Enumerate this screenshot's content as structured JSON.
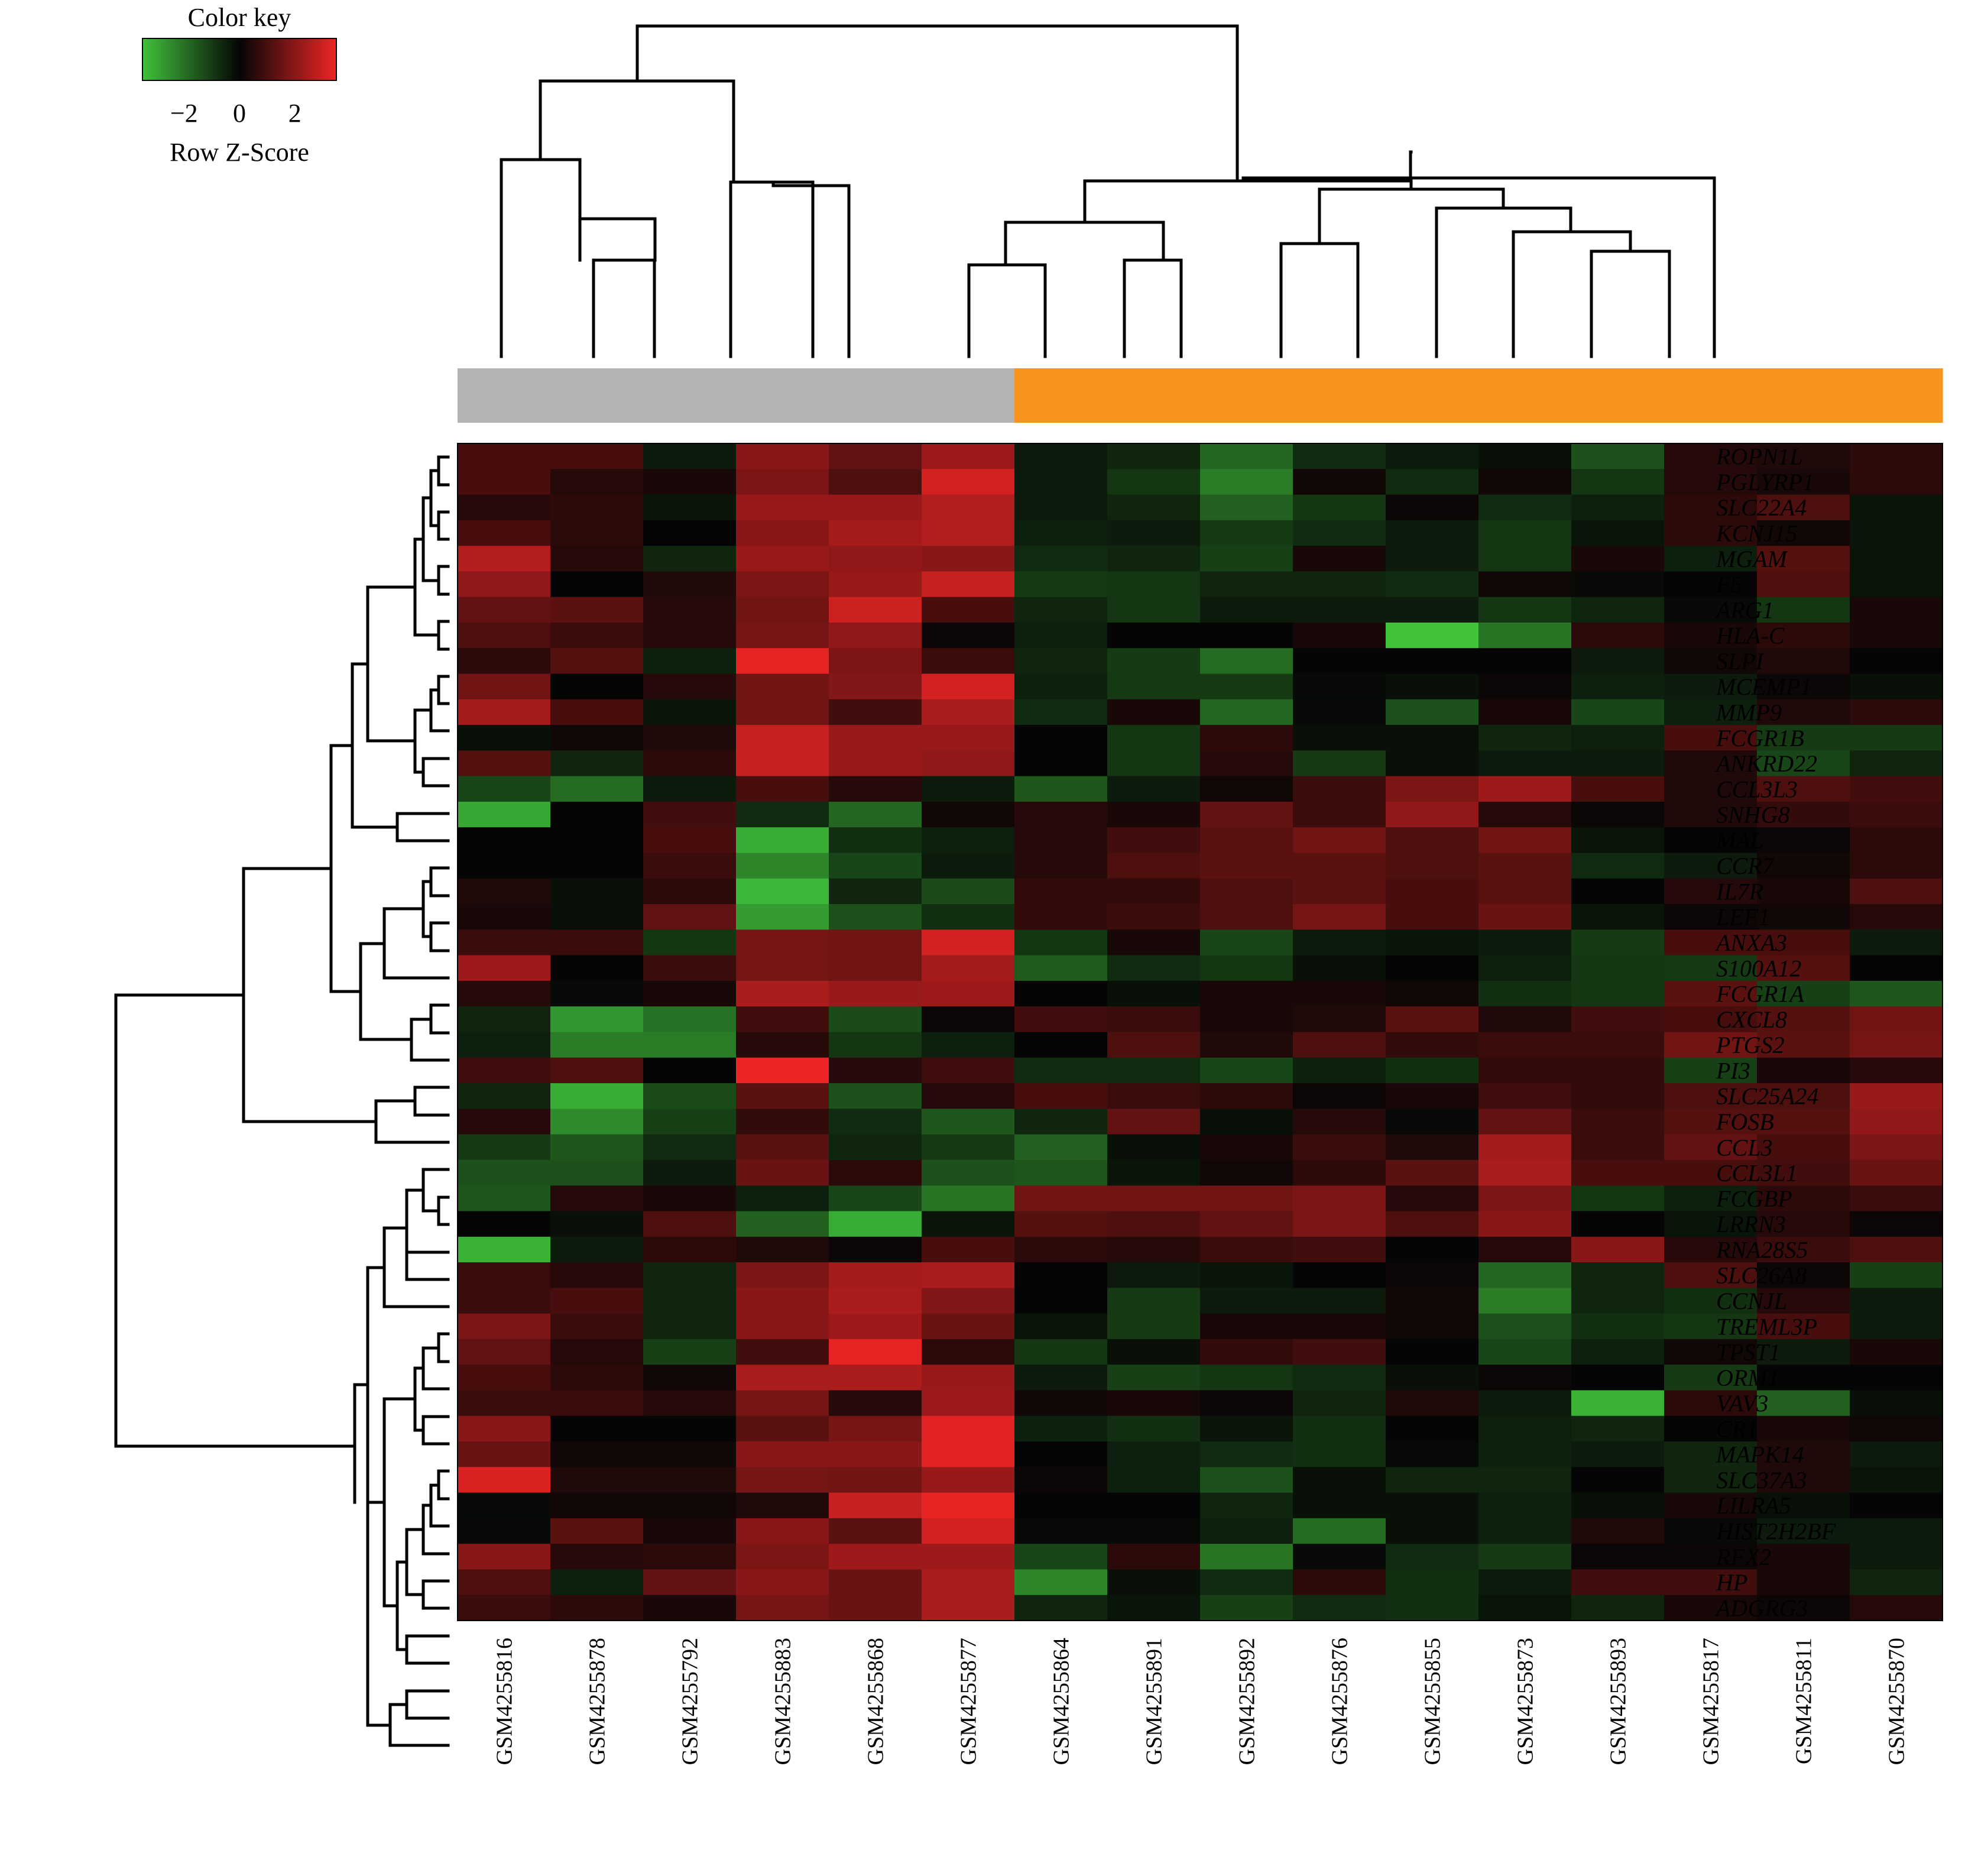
{
  "chart_data": {
    "type": "heatmap",
    "color_key": {
      "title": "Color key",
      "label": "Row Z-Score",
      "ticks": [
        "−2",
        "0",
        "2"
      ],
      "tick_values": [
        -2,
        0,
        2
      ],
      "range": [
        -3.5,
        3.5
      ],
      "low_color": "#40c23b",
      "mid_color": "#050505",
      "high_color": "#ee2525"
    },
    "group_colors": [
      "#b3b3b3",
      "#f7941d"
    ],
    "sample_groups": [
      0,
      0,
      0,
      0,
      0,
      0,
      1,
      1,
      1,
      1,
      1,
      1,
      1,
      1,
      1,
      1
    ],
    "samples": [
      "GSM4255816",
      "GSM4255878",
      "GSM4255792",
      "GSM4255883",
      "GSM4255868",
      "GSM4255877",
      "GSM4255864",
      "GSM4255891",
      "GSM4255892",
      "GSM4255876",
      "GSM4255855",
      "GSM4255873",
      "GSM4255893",
      "GSM4255817",
      "GSM4255811",
      "GSM4255870"
    ],
    "genes": [
      "ROPN1L",
      "PGLYRP1",
      "SLC22A4",
      "KCNJ15",
      "MGAM",
      "F5",
      "ARG1",
      "HLA-C",
      "SLPI",
      "MCEMP1",
      "MMP9",
      "FCGR1B",
      "ANKRD22",
      "CCL3L3",
      "SNHG8",
      "MAL",
      "CCR7",
      "IL7R",
      "LEF1",
      "ANXA3",
      "S100A12",
      "FCGR1A",
      "CXCL8",
      "PTGS2",
      "PI3",
      "SLC25A24",
      "FOSB",
      "CCL3",
      "CCL3L1",
      "FCGBP",
      "LRRN3",
      "RNA28S5",
      "SLC26A8",
      "CCNJL",
      "TREML3P",
      "TPST1",
      "ORM1",
      "VAV3",
      "CR1",
      "MAPK14",
      "SLC37A3",
      "LILRA5",
      "HIST2H2BF",
      "RFX2",
      "HP",
      "ADGRG3"
    ],
    "values": [
      [
        1.0,
        1.0,
        -0.4,
        2.0,
        1.4,
        2.3,
        -0.4,
        -0.6,
        -1.8,
        -0.7,
        -0.4,
        -0.2,
        -1.4,
        0.5,
        0.4,
        0.6
      ],
      [
        1.0,
        0.5,
        0.3,
        1.8,
        1.1,
        3.1,
        -0.4,
        -0.9,
        -2.2,
        0.2,
        -0.7,
        0.2,
        -0.9,
        0.5,
        0.3,
        0.6
      ],
      [
        0.5,
        0.6,
        -0.3,
        2.2,
        2.2,
        2.6,
        -0.4,
        -0.6,
        -1.7,
        -0.9,
        0.1,
        -0.7,
        -0.5,
        0.6,
        1.1,
        -0.3
      ],
      [
        1.0,
        0.6,
        0.0,
        2.0,
        2.4,
        2.6,
        -0.5,
        -0.4,
        -1.0,
        -0.7,
        -0.4,
        -0.9,
        -0.3,
        0.6,
        0.2,
        -0.3
      ],
      [
        2.6,
        0.5,
        -0.6,
        2.2,
        2.1,
        2.0,
        -0.7,
        -0.6,
        -1.1,
        0.3,
        -0.4,
        -0.9,
        0.3,
        -0.5,
        1.2,
        -0.3
      ],
      [
        2.1,
        0.0,
        0.4,
        1.8,
        2.2,
        2.9,
        -1.0,
        -0.9,
        -0.6,
        -0.6,
        -0.7,
        0.2,
        -0.1,
        0.0,
        1.1,
        -0.3
      ],
      [
        1.4,
        1.3,
        0.5,
        1.6,
        3.0,
        1.0,
        -0.6,
        -0.9,
        -0.4,
        -0.4,
        -0.4,
        -0.9,
        -0.6,
        -0.1,
        -0.9,
        0.3
      ],
      [
        1.1,
        0.8,
        0.5,
        1.7,
        2.1,
        0.1,
        -0.5,
        0.0,
        0.0,
        0.3,
        -3.5,
        -2.1,
        0.6,
        0.3,
        0.6,
        0.3
      ],
      [
        0.6,
        1.2,
        -0.5,
        3.4,
        1.8,
        0.8,
        -0.6,
        -1.0,
        -1.9,
        0.0,
        0.0,
        0.0,
        -0.4,
        0.2,
        0.4,
        0.0
      ],
      [
        1.6,
        0.0,
        0.5,
        1.6,
        1.9,
        3.1,
        -0.5,
        -1.0,
        -1.0,
        -0.1,
        -0.2,
        0.1,
        -0.5,
        -0.4,
        0.1,
        -0.2
      ],
      [
        2.4,
        1.0,
        -0.3,
        1.6,
        0.9,
        2.5,
        -0.7,
        0.3,
        -1.8,
        -0.1,
        -1.4,
        0.3,
        -1.2,
        -0.5,
        0.4,
        0.6
      ],
      [
        -0.2,
        0.2,
        0.4,
        2.9,
        2.2,
        2.2,
        0.0,
        -0.9,
        0.6,
        -0.2,
        -0.2,
        -0.6,
        -0.5,
        1.0,
        -1.0,
        -1.0
      ],
      [
        1.2,
        -0.6,
        0.6,
        2.9,
        2.2,
        2.1,
        0.0,
        -0.9,
        0.5,
        -1.0,
        -0.2,
        -0.4,
        -0.4,
        0.4,
        -1.2,
        -0.6
      ],
      [
        -1.2,
        -1.9,
        -0.4,
        1.0,
        0.5,
        -0.4,
        -1.5,
        -0.4,
        0.2,
        0.8,
        1.8,
        2.3,
        1.0,
        0.4,
        1.1,
        0.9
      ],
      [
        -3.0,
        0.0,
        0.9,
        -0.7,
        -1.8,
        0.2,
        0.5,
        0.3,
        1.4,
        0.8,
        2.1,
        0.5,
        0.1,
        0.4,
        0.7,
        0.8
      ],
      [
        0.0,
        0.0,
        1.0,
        -3.1,
        -0.8,
        -0.5,
        0.5,
        0.9,
        1.3,
        1.6,
        1.1,
        1.6,
        -0.3,
        0.0,
        0.1,
        0.6
      ],
      [
        0.0,
        0.0,
        0.8,
        -2.4,
        -1.2,
        -0.4,
        0.5,
        1.1,
        1.3,
        1.3,
        1.1,
        1.3,
        -0.7,
        -0.4,
        0.2,
        0.6
      ],
      [
        0.4,
        -0.2,
        0.6,
        -3.3,
        -0.6,
        -1.3,
        0.7,
        0.7,
        1.1,
        1.3,
        1.0,
        1.3,
        0.0,
        0.5,
        0.3,
        1.1
      ],
      [
        0.3,
        -0.2,
        1.4,
        -2.8,
        -1.4,
        -0.8,
        0.7,
        0.8,
        1.1,
        1.7,
        1.0,
        1.5,
        -0.3,
        0.1,
        0.2,
        0.5
      ],
      [
        0.8,
        0.8,
        -0.9,
        1.7,
        1.6,
        3.1,
        -0.9,
        0.3,
        -1.2,
        -0.4,
        -0.3,
        -0.4,
        -1.0,
        1.0,
        1.0,
        -0.4
      ],
      [
        2.3,
        0.0,
        0.8,
        1.7,
        1.6,
        2.4,
        -1.6,
        -0.7,
        -0.9,
        -0.2,
        0.0,
        -0.5,
        -0.9,
        -1.0,
        1.2,
        0.0
      ],
      [
        0.5,
        -0.1,
        0.3,
        2.5,
        2.2,
        2.3,
        0.0,
        -0.2,
        0.3,
        0.3,
        0.2,
        -0.8,
        -0.9,
        1.3,
        -1.1,
        -1.5
      ],
      [
        -0.6,
        -2.7,
        -2.0,
        0.9,
        -1.3,
        0.1,
        0.9,
        0.8,
        0.3,
        0.4,
        1.3,
        0.4,
        0.9,
        1.0,
        1.2,
        1.6
      ],
      [
        -0.5,
        -2.2,
        -2.2,
        0.5,
        -0.9,
        -0.5,
        0.0,
        1.1,
        0.4,
        1.1,
        0.7,
        0.8,
        0.8,
        1.6,
        1.3,
        1.7
      ],
      [
        0.9,
        1.1,
        0.0,
        3.5,
        0.5,
        0.9,
        -0.7,
        -0.7,
        -1.2,
        -0.5,
        -0.8,
        0.7,
        0.7,
        -1.1,
        0.3,
        0.5
      ],
      [
        -0.6,
        -3.1,
        -1.3,
        1.3,
        -1.4,
        0.5,
        1.0,
        0.8,
        0.6,
        0.1,
        0.3,
        0.9,
        0.7,
        1.1,
        1.1,
        2.2
      ],
      [
        0.5,
        -2.5,
        -1.1,
        0.7,
        -0.7,
        -1.5,
        -0.6,
        1.4,
        -0.2,
        0.5,
        -0.1,
        1.4,
        0.8,
        1.2,
        1.2,
        2.1
      ],
      [
        -1.0,
        -1.5,
        -0.7,
        1.3,
        -0.6,
        -1.0,
        -1.7,
        -0.2,
        0.3,
        0.8,
        0.4,
        2.4,
        0.8,
        1.4,
        1.0,
        1.8
      ],
      [
        -1.4,
        -1.4,
        -0.4,
        1.5,
        0.6,
        -1.4,
        -1.5,
        -0.3,
        0.2,
        0.6,
        1.3,
        2.5,
        1.0,
        1.0,
        0.9,
        1.5
      ],
      [
        -1.5,
        0.5,
        0.3,
        -0.5,
        -1.2,
        -2.1,
        1.6,
        1.6,
        1.6,
        1.8,
        0.5,
        1.8,
        -0.9,
        -0.5,
        0.6,
        0.8
      ],
      [
        0.0,
        -0.2,
        1.1,
        -1.7,
        -3.1,
        -0.3,
        1.2,
        1.1,
        1.4,
        1.8,
        1.1,
        2.0,
        0.0,
        -0.3,
        0.5,
        0.1
      ],
      [
        -3.2,
        -0.4,
        0.6,
        0.4,
        0.1,
        1.0,
        0.6,
        0.5,
        0.8,
        0.9,
        0.0,
        0.5,
        2.0,
        0.5,
        0.8,
        1.1
      ],
      [
        0.8,
        0.5,
        -0.6,
        1.8,
        2.4,
        2.5,
        0.0,
        -0.4,
        -0.3,
        0.0,
        0.1,
        -1.8,
        -0.6,
        1.1,
        0.1,
        -1.1
      ],
      [
        0.8,
        1.0,
        -0.6,
        2.0,
        2.5,
        1.9,
        0.0,
        -1.0,
        -0.4,
        -0.4,
        0.2,
        -2.2,
        -0.6,
        -0.8,
        0.5,
        -0.4
      ],
      [
        1.8,
        0.8,
        -0.6,
        2.0,
        2.3,
        1.5,
        -0.3,
        -1.0,
        0.3,
        0.3,
        0.2,
        -1.4,
        -0.8,
        -0.9,
        1.0,
        -0.4
      ],
      [
        1.4,
        0.5,
        -1.1,
        0.9,
        3.4,
        0.6,
        -0.9,
        -0.2,
        0.7,
        0.9,
        0.0,
        -1.2,
        -0.5,
        0.2,
        -0.4,
        0.3
      ],
      [
        1.0,
        0.6,
        0.2,
        2.5,
        2.5,
        2.2,
        -0.4,
        -1.1,
        -0.9,
        -0.7,
        -0.2,
        0.1,
        0.0,
        -1.0,
        0.0,
        0.0
      ],
      [
        0.8,
        0.8,
        0.5,
        1.7,
        0.5,
        2.3,
        0.2,
        0.3,
        0.1,
        -0.6,
        0.4,
        -0.4,
        -3.2,
        0.6,
        -1.7,
        -0.2
      ],
      [
        2.0,
        0.0,
        0.0,
        1.3,
        1.7,
        3.3,
        -0.5,
        -0.8,
        -0.3,
        -0.8,
        0.0,
        -0.5,
        -0.6,
        0.0,
        0.3,
        0.2
      ],
      [
        1.5,
        0.2,
        0.2,
        2.0,
        2.0,
        3.3,
        0.0,
        -0.5,
        -0.7,
        -0.8,
        -0.1,
        -0.5,
        -0.4,
        -0.6,
        0.4,
        -0.4
      ],
      [
        3.2,
        0.4,
        0.4,
        1.7,
        1.6,
        2.2,
        0.1,
        -0.5,
        -1.4,
        -0.2,
        -0.6,
        -0.6,
        0.0,
        -0.6,
        0.4,
        -0.3
      ],
      [
        -0.1,
        0.2,
        0.2,
        0.4,
        2.9,
        3.4,
        0.0,
        0.0,
        -0.6,
        -0.2,
        -0.2,
        -0.5,
        -0.2,
        0.3,
        -0.2,
        0.0
      ],
      [
        -0.1,
        1.3,
        0.3,
        2.0,
        1.3,
        3.1,
        -0.1,
        -0.1,
        -0.5,
        -1.9,
        -0.2,
        -0.5,
        0.4,
        -0.1,
        -0.4,
        -0.4
      ],
      [
        2.0,
        0.5,
        0.6,
        1.8,
        2.3,
        2.3,
        -1.2,
        0.6,
        -2.1,
        -0.1,
        -0.7,
        -1.0,
        0.1,
        0.1,
        0.3,
        -0.4
      ],
      [
        1.1,
        -0.5,
        1.4,
        2.0,
        1.5,
        2.5,
        -2.4,
        -0.2,
        -0.7,
        0.6,
        -0.8,
        -0.4,
        0.9,
        0.9,
        0.3,
        -0.6
      ],
      [
        0.8,
        0.6,
        0.3,
        1.7,
        1.5,
        2.5,
        -0.6,
        -0.3,
        -1.1,
        -0.7,
        -0.8,
        -0.3,
        -0.6,
        0.3,
        0.1,
        0.5
      ]
    ]
  }
}
